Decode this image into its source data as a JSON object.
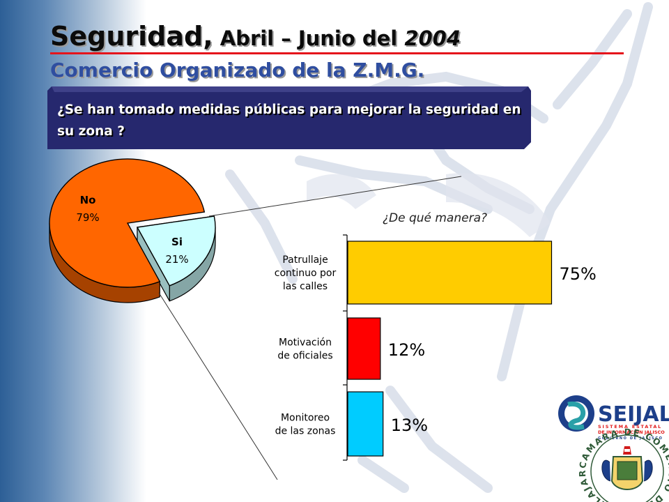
{
  "title": {
    "part1": "Seguridad,",
    "part2": " Abril – Junio del ",
    "part3": "2004"
  },
  "subtitle": "Comercio Organizado de la Z.M.G.",
  "question": "¿Se han tomado medidas públicas para mejorar la seguridad en su zona ?",
  "colors": {
    "pie_no": "#ff6600",
    "pie_si": "#ccffff",
    "bar_patrullaje": "#ffcc00",
    "bar_motivacion": "#ff0000",
    "bar_monitoreo": "#00ccff",
    "title_red_rule": "#e5141b",
    "subtitle_blue": "#2f4ea0",
    "question_box": "#26286e"
  },
  "chart_data": [
    {
      "type": "pie",
      "categories": [
        "No",
        "Si"
      ],
      "values": [
        79,
        21
      ],
      "data_labels": [
        "79%",
        "21%"
      ]
    },
    {
      "type": "bar",
      "orientation": "horizontal",
      "title": "¿De qué manera?",
      "categories": [
        [
          "Patrullaje",
          "continuo por",
          "las calles"
        ],
        [
          "Motivación",
          "de oficiales"
        ],
        [
          "Monitoreo",
          "de las zonas"
        ]
      ],
      "values": [
        75,
        12,
        13
      ],
      "data_labels": [
        "75%",
        "12%",
        "13%"
      ],
      "xlim": [
        0,
        100
      ]
    }
  ],
  "logos": {
    "seijal": {
      "name": "SEIJAL",
      "lines": [
        "SISTEMA ESTATAL",
        "DE INFORMACIÓN JALISCO",
        "GOBIERNO DE JALISCO"
      ]
    },
    "camara": {
      "ring_text": "CAMARA DE COMERCIO DE GUADALAJARA"
    }
  }
}
